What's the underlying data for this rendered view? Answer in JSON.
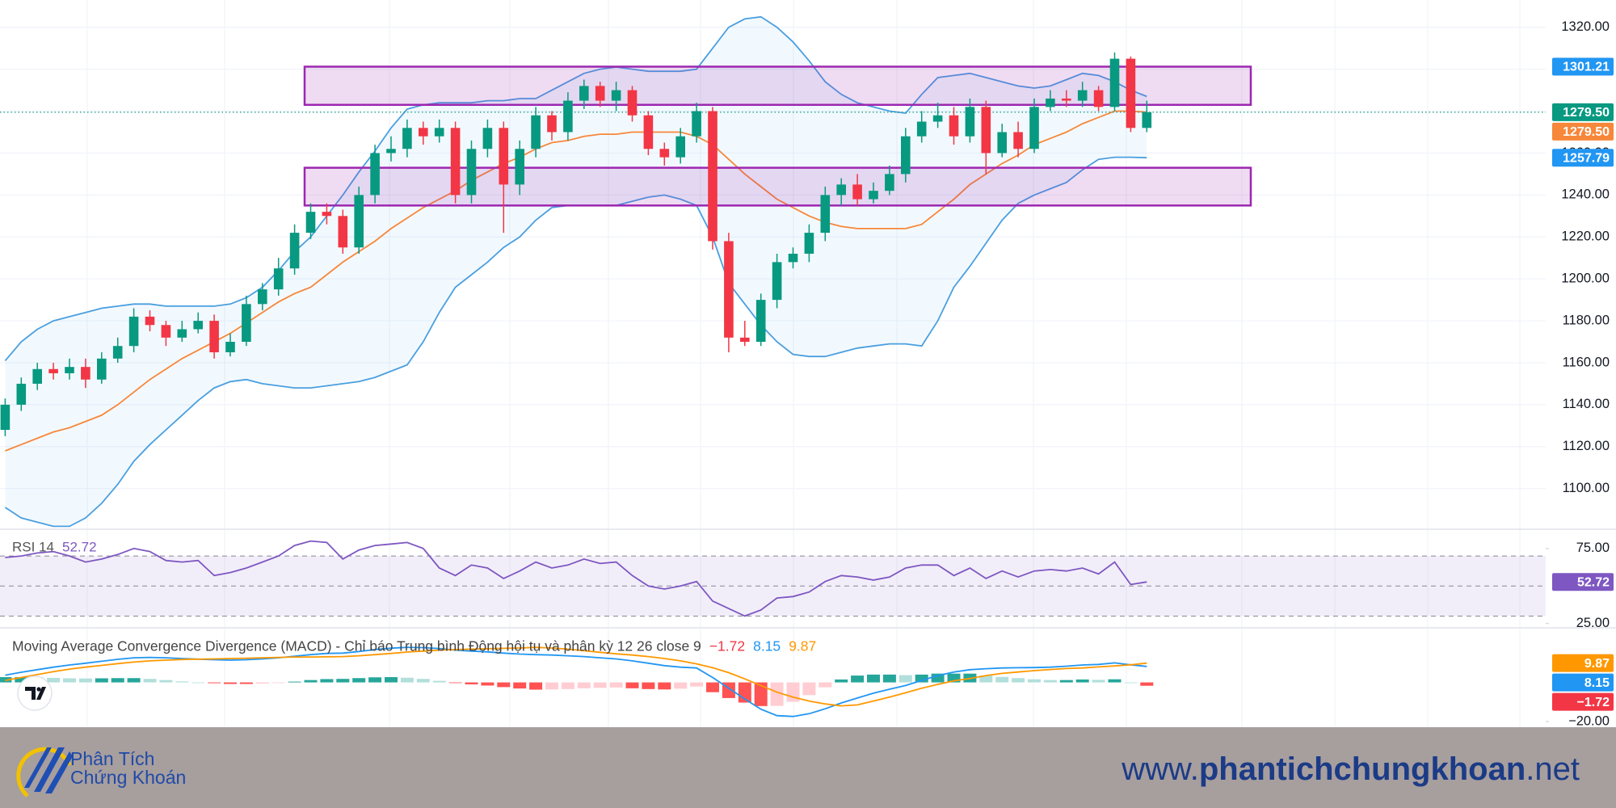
{
  "chart_data": [
    {
      "type": "candlestick",
      "up_color": "#089981",
      "down_color": "#f23645",
      "open": [
        1128,
        1140,
        1150,
        1157,
        1155,
        1158,
        1152,
        1162,
        1168,
        1182,
        1178,
        1172,
        1176,
        1180,
        1165,
        1170,
        1188,
        1195,
        1205,
        1222,
        1232,
        1230,
        1215,
        1240,
        1260,
        1262,
        1272,
        1268,
        1272,
        1240,
        1262,
        1272,
        1245,
        1262,
        1278,
        1270,
        1285,
        1292,
        1285,
        1290,
        1278,
        1262,
        1258,
        1268,
        1280,
        1218,
        1172,
        1170,
        1190,
        1208,
        1212,
        1222,
        1240,
        1245,
        1238,
        1242,
        1250,
        1268,
        1275,
        1278,
        1268,
        1282,
        1260,
        1270,
        1262,
        1282,
        1286,
        1285,
        1290,
        1282,
        1305,
        1272
      ],
      "high": [
        1143,
        1153,
        1160,
        1160,
        1162,
        1162,
        1165,
        1172,
        1186,
        1185,
        1180,
        1180,
        1184,
        1183,
        1174,
        1192,
        1198,
        1210,
        1226,
        1236,
        1236,
        1233,
        1244,
        1264,
        1268,
        1276,
        1275,
        1276,
        1275,
        1266,
        1276,
        1275,
        1266,
        1282,
        1280,
        1289,
        1295,
        1294,
        1294,
        1292,
        1280,
        1265,
        1272,
        1284,
        1282,
        1222,
        1180,
        1193,
        1212,
        1215,
        1226,
        1244,
        1248,
        1250,
        1246,
        1254,
        1272,
        1280,
        1284,
        1282,
        1286,
        1285,
        1274,
        1275,
        1286,
        1290,
        1290,
        1294,
        1292,
        1308,
        1306,
        1285
      ],
      "low": [
        1125,
        1137,
        1147,
        1152,
        1152,
        1148,
        1150,
        1160,
        1165,
        1175,
        1168,
        1170,
        1174,
        1162,
        1163,
        1168,
        1185,
        1192,
        1202,
        1219,
        1226,
        1212,
        1212,
        1236,
        1256,
        1258,
        1264,
        1265,
        1236,
        1236,
        1258,
        1222,
        1240,
        1258,
        1266,
        1266,
        1281,
        1282,
        1280,
        1275,
        1259,
        1254,
        1255,
        1265,
        1214,
        1165,
        1168,
        1168,
        1186,
        1205,
        1208,
        1218,
        1235,
        1235,
        1236,
        1240,
        1246,
        1265,
        1272,
        1264,
        1265,
        1250,
        1258,
        1258,
        1260,
        1280,
        1282,
        1282,
        1280,
        1280,
        1270,
        1270
      ],
      "close": [
        1140,
        1150,
        1157,
        1155,
        1158,
        1152,
        1162,
        1168,
        1182,
        1178,
        1172,
        1176,
        1180,
        1165,
        1170,
        1188,
        1195,
        1205,
        1222,
        1232,
        1230,
        1215,
        1240,
        1260,
        1262,
        1272,
        1268,
        1272,
        1240,
        1262,
        1272,
        1245,
        1262,
        1278,
        1270,
        1285,
        1292,
        1285,
        1290,
        1278,
        1262,
        1258,
        1268,
        1280,
        1218,
        1172,
        1170,
        1190,
        1208,
        1212,
        1222,
        1240,
        1245,
        1238,
        1242,
        1250,
        1268,
        1275,
        1278,
        1268,
        1282,
        1260,
        1270,
        1262,
        1282,
        1286,
        1285,
        1290,
        1282,
        1305,
        1272,
        1279.5
      ],
      "last_close_label": "1279.50",
      "upper": {
        "color": "#4a9fe0",
        "values": [
          1161,
          1170,
          1176,
          1180,
          1182,
          1184,
          1186,
          1187,
          1188,
          1188,
          1187,
          1187,
          1187,
          1187,
          1188,
          1191,
          1196,
          1204,
          1213,
          1220,
          1230,
          1240,
          1251,
          1261,
          1272,
          1281,
          1283,
          1284,
          1284,
          1284,
          1285,
          1285,
          1286,
          1286,
          1290,
          1294,
          1298,
          1300,
          1301,
          1300,
          1299,
          1299,
          1299,
          1300,
          1310,
          1320,
          1324,
          1325,
          1320,
          1313,
          1304,
          1294,
          1288,
          1284,
          1282,
          1280,
          1279,
          1288,
          1296,
          1297,
          1298,
          1296,
          1294,
          1292,
          1291,
          1292,
          1295,
          1298,
          1297,
          1294,
          1290,
          1287
        ]
      },
      "basis": {
        "color": "#f7873a",
        "last_label": "1279.50",
        "values": [
          1118,
          1121,
          1124,
          1127,
          1129,
          1132,
          1135,
          1140,
          1146,
          1152,
          1157,
          1162,
          1166,
          1170,
          1174,
          1179,
          1184,
          1189,
          1193,
          1196,
          1202,
          1208,
          1213,
          1218,
          1224,
          1229,
          1234,
          1238,
          1242,
          1247,
          1251,
          1255,
          1258,
          1262,
          1265,
          1266,
          1268,
          1269,
          1269,
          1270,
          1270,
          1270,
          1270,
          1268,
          1264,
          1257,
          1250,
          1244,
          1238,
          1234,
          1230,
          1227,
          1225,
          1224,
          1224,
          1224,
          1224,
          1226,
          1232,
          1238,
          1245,
          1250,
          1255,
          1259,
          1264,
          1267,
          1270,
          1274,
          1277,
          1280,
          1280,
          1279.5
        ]
      },
      "lower": {
        "color": "#4a9fe0",
        "values": [
          1091,
          1086,
          1084,
          1082,
          1082,
          1086,
          1093,
          1102,
          1113,
          1121,
          1128,
          1135,
          1142,
          1148,
          1151,
          1152,
          1150,
          1149,
          1148,
          1148,
          1149,
          1150,
          1151,
          1153,
          1156,
          1159,
          1170,
          1184,
          1196,
          1202,
          1208,
          1215,
          1220,
          1228,
          1234,
          1235,
          1235,
          1235,
          1235,
          1237,
          1239,
          1240,
          1238,
          1235,
          1220,
          1198,
          1188,
          1178,
          1170,
          1164,
          1163,
          1163,
          1165,
          1167,
          1168,
          1169,
          1169,
          1168,
          1180,
          1196,
          1206,
          1217,
          1228,
          1236,
          1240,
          1243,
          1246,
          1252,
          1257,
          1258,
          1258,
          1257.79
        ]
      },
      "zones": [
        {
          "from": 1283,
          "to": 1301.21
        },
        {
          "from": 1235,
          "to": 1253
        }
      ],
      "zone_color": "#9c27b0",
      "ylim": [
        1081,
        1333
      ],
      "yticks": [
        {
          "value": 1100,
          "label": "1100.00"
        },
        {
          "value": 1120,
          "label": "1120.00"
        },
        {
          "value": 1140,
          "label": "1140.00"
        },
        {
          "value": 1160,
          "label": "1160.00"
        },
        {
          "value": 1180,
          "label": "1180.00"
        },
        {
          "value": 1200,
          "label": "1200.00"
        },
        {
          "value": 1220,
          "label": "1220.00"
        },
        {
          "value": 1240,
          "label": "1240.00"
        },
        {
          "value": 1260,
          "label": "1260.00"
        },
        {
          "value": 1280,
          "label": "1280.00"
        },
        {
          "value": 1300,
          "label": "1300.00"
        },
        {
          "value": 1320,
          "label": "1320.00"
        }
      ],
      "grid": true
    },
    {
      "type": "line",
      "title": "RSI 14",
      "color": "#7e57c2",
      "values": [
        69,
        70,
        72,
        73,
        70,
        66,
        68,
        71,
        75,
        73,
        67,
        66,
        67,
        57,
        59,
        62,
        66,
        70,
        77,
        80,
        79,
        68,
        74,
        77,
        78,
        79,
        75,
        62,
        57,
        64,
        62,
        55,
        60,
        66,
        62,
        64,
        68,
        65,
        66,
        57,
        50,
        48,
        50,
        53,
        40,
        35,
        30,
        34,
        42,
        43,
        46,
        53,
        57,
        56,
        54,
        56,
        62,
        64,
        64,
        57,
        62,
        55,
        60,
        56,
        60,
        61,
        60,
        62,
        58,
        66,
        51,
        52.72
      ],
      "bands": [
        30,
        70
      ],
      "midline": 50,
      "ylim": [
        22.7,
        87.3
      ],
      "yticks": [
        {
          "value": 25,
          "label": "25.00"
        },
        {
          "value": 75,
          "label": "75.00"
        }
      ]
    },
    {
      "type": "macd",
      "title": "Moving Average Convergence Divergence (MACD) - Chỉ báo Trung bình Động hội tụ và phân kỳ 12 26 close 9",
      "histogram": {
        "last_label": "−1.72",
        "values": [
          2.7,
          2.7,
          2.5,
          2.3,
          2.1,
          2.0,
          2.1,
          2.2,
          2.2,
          1.8,
          1.2,
          0.5,
          0.0,
          -0.4,
          -0.8,
          -0.8,
          -0.6,
          -0.2,
          0.4,
          1.2,
          1.7,
          1.8,
          2.2,
          2.6,
          2.7,
          2.4,
          1.8,
          0.8,
          -0.3,
          -1.0,
          -1.6,
          -2.4,
          -3.1,
          -3.7,
          -3.6,
          -3.4,
          -3.0,
          -2.8,
          -2.6,
          -3.0,
          -3.4,
          -3.6,
          -3.2,
          -2.1,
          -5.0,
          -8.0,
          -10.3,
          -12.1,
          -12.0,
          -9.9,
          -6.5,
          -2.5,
          1.5,
          3.5,
          4.0,
          4.0,
          3.7,
          4.0,
          4.5,
          4.5,
          4.5,
          3.5,
          2.8,
          2.2,
          1.6,
          1.2,
          1.2,
          1.5,
          1.3,
          1.6,
          0.0,
          -1.72
        ]
      },
      "macd": {
        "color": "#2196f3",
        "values": [
          3.7,
          5.2,
          6.5,
          7.8,
          8.9,
          9.8,
          10.8,
          11.8,
          12.6,
          12.8,
          12.6,
          12.2,
          11.9,
          11.6,
          11.4,
          11.6,
          12.0,
          12.6,
          13.4,
          14.2,
          14.8,
          15.0,
          15.8,
          16.8,
          17.5,
          17.9,
          17.8,
          17.3,
          16.5,
          16.0,
          15.6,
          15.0,
          14.5,
          14.2,
          14.0,
          13.6,
          13.2,
          12.6,
          12.0,
          11.0,
          9.8,
          8.6,
          7.8,
          7.4,
          2.5,
          -3.0,
          -8.5,
          -13.7,
          -17.0,
          -17.4,
          -16.0,
          -13.5,
          -10.5,
          -8.0,
          -5.5,
          -3.5,
          -1.6,
          1.0,
          3.5,
          5.3,
          6.5,
          7.0,
          7.4,
          7.5,
          7.6,
          7.8,
          8.3,
          8.9,
          9.2,
          10.0,
          9.0,
          8.15
        ]
      },
      "signal": {
        "color": "#ff9800",
        "values": [
          1.0,
          2.5,
          4.0,
          5.5,
          6.8,
          7.8,
          8.7,
          9.6,
          10.4,
          11.0,
          11.4,
          11.7,
          11.9,
          12.0,
          12.2,
          12.4,
          12.6,
          12.8,
          13.0,
          13.0,
          13.1,
          13.2,
          13.6,
          14.2,
          14.8,
          15.5,
          16.0,
          16.5,
          16.8,
          17.0,
          17.2,
          17.4,
          17.6,
          17.9,
          17.6,
          17.0,
          16.2,
          15.4,
          14.6,
          14.0,
          13.2,
          12.2,
          11.0,
          9.5,
          7.5,
          5.0,
          1.8,
          -1.6,
          -5.0,
          -7.5,
          -9.5,
          -11.0,
          -12.0,
          -11.5,
          -9.5,
          -7.5,
          -5.3,
          -3.0,
          -1.0,
          0.8,
          2.0,
          3.5,
          4.6,
          5.3,
          6.0,
          6.6,
          7.1,
          7.4,
          7.9,
          8.4,
          9.0,
          9.87
        ]
      },
      "ylim": [
        -22.9,
        27.5
      ],
      "yticks": [
        {
          "value": -20,
          "label": "−20.00"
        }
      ]
    }
  ],
  "footer": {
    "logo": [
      "Phân Tích",
      "Chứng Khoán"
    ],
    "website": {
      "prefix": "www.",
      "name": "phantichchungkhoan",
      "suffix": ".net"
    }
  }
}
